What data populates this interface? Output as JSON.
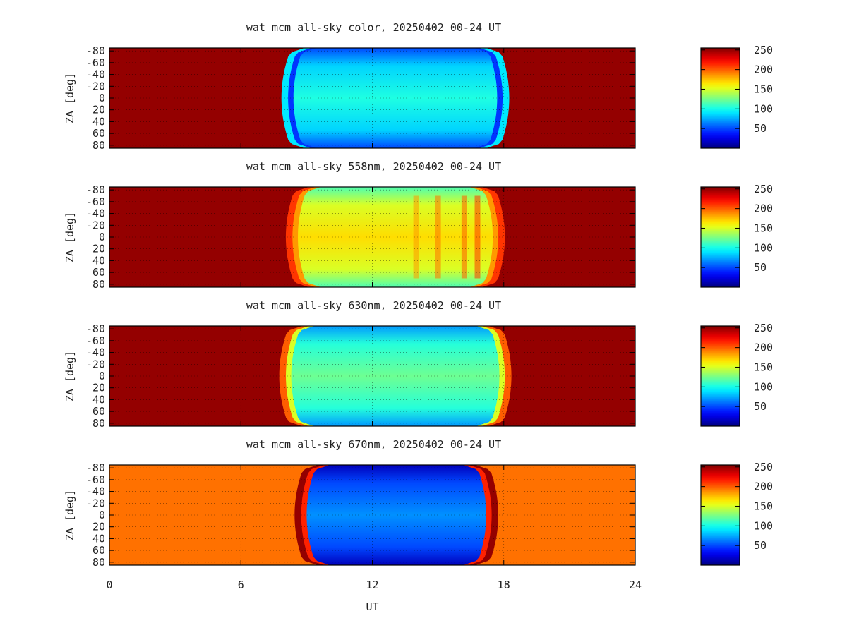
{
  "chart_data": [
    {
      "type": "heatmap",
      "title": "wat mcm all-sky color, 20250402 00-24 UT",
      "ylabel": "ZA [deg]",
      "xlabel": "",
      "xlim": [
        0,
        24
      ],
      "ylim": [
        -85,
        85
      ],
      "x_ticks": [
        "0",
        "6",
        "12",
        "18",
        "24"
      ],
      "y_ticks": [
        "-80",
        "-60",
        "-40",
        "-20",
        "0",
        "20",
        "40",
        "60",
        "80"
      ],
      "grid": true,
      "colorbar": {
        "range": [
          0,
          255
        ],
        "ticks": [
          "50",
          "100",
          "150",
          "200",
          "250"
        ]
      },
      "night_value": 250,
      "day_start_ut": 8.4,
      "day_end_ut": 17.7,
      "edge_values": [
        90,
        45
      ],
      "day_mean_value": 95,
      "stripe_values": []
    },
    {
      "type": "heatmap",
      "title": "wat mcm all-sky 558nm, 20250402 00-24 UT",
      "ylabel": "ZA [deg]",
      "xlabel": "",
      "xlim": [
        0,
        24
      ],
      "ylim": [
        -85,
        85
      ],
      "x_ticks": [
        "0",
        "6",
        "12",
        "18",
        "24"
      ],
      "y_ticks": [
        "-80",
        "-60",
        "-40",
        "-20",
        "0",
        "20",
        "40",
        "60",
        "80"
      ],
      "grid": true,
      "colorbar": {
        "range": [
          0,
          255
        ],
        "ticks": [
          "50",
          "100",
          "150",
          "200",
          "250"
        ]
      },
      "night_value": 250,
      "day_start_ut": 8.6,
      "day_end_ut": 17.5,
      "edge_values": [
        210,
        185
      ],
      "day_mean_value": 160,
      "stripe_values": [
        [
          14.0,
          185
        ],
        [
          15.0,
          195
        ],
        [
          16.2,
          200
        ],
        [
          16.8,
          210
        ]
      ]
    },
    {
      "type": "heatmap",
      "title": "wat mcm all-sky 630nm, 20250402 00-24 UT",
      "ylabel": "ZA [deg]",
      "xlabel": "",
      "xlim": [
        0,
        24
      ],
      "ylim": [
        -85,
        85
      ],
      "x_ticks": [
        "0",
        "6",
        "12",
        "18",
        "24"
      ],
      "y_ticks": [
        "-80",
        "-60",
        "-40",
        "-20",
        "0",
        "20",
        "40",
        "60",
        "80"
      ],
      "grid": true,
      "colorbar": {
        "range": [
          0,
          255
        ],
        "ticks": [
          "50",
          "100",
          "150",
          "200",
          "250"
        ]
      },
      "night_value": 250,
      "day_start_ut": 8.3,
      "day_end_ut": 17.8,
      "edge_values": [
        200,
        150
      ],
      "day_mean_value": 115,
      "stripe_values": []
    },
    {
      "type": "heatmap",
      "title": "wat mcm all-sky 670nm, 20250402 00-24 UT",
      "ylabel": "ZA [deg]",
      "xlabel": "UT",
      "xlim": [
        0,
        24
      ],
      "ylim": [
        -85,
        85
      ],
      "x_ticks": [
        "0",
        "6",
        "12",
        "18",
        "24"
      ],
      "y_ticks": [
        "-80",
        "-60",
        "-40",
        "-20",
        "0",
        "20",
        "40",
        "60",
        "80"
      ],
      "grid": true,
      "colorbar": {
        "range": [
          0,
          255
        ],
        "ticks": [
          "50",
          "100",
          "150",
          "200",
          "250"
        ]
      },
      "night_value": 195,
      "day_start_ut": 9.0,
      "day_end_ut": 17.2,
      "edge_values": [
        250,
        215
      ],
      "day_mean_value": 60,
      "stripe_values": []
    }
  ]
}
